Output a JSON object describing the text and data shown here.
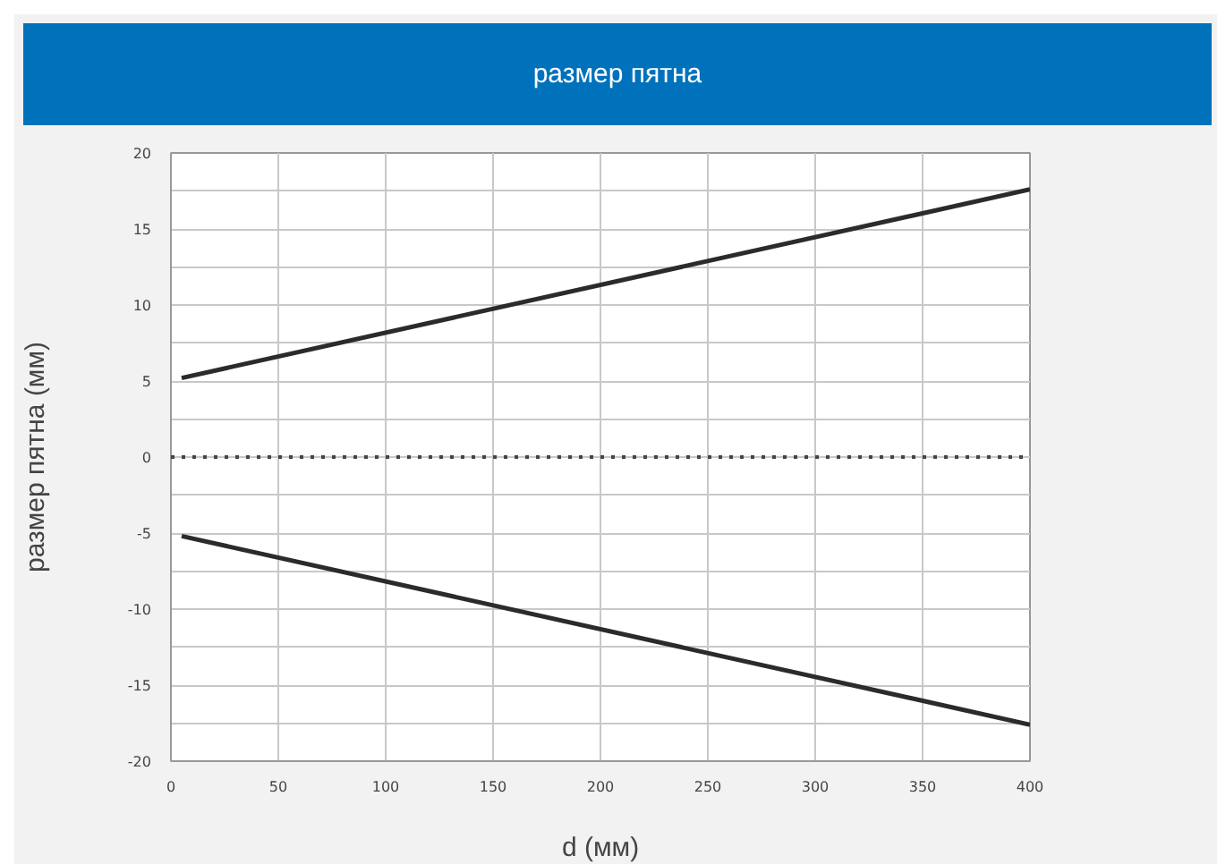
{
  "chart_data": {
    "type": "line",
    "title": "размер пятна",
    "xlabel": "d (мм)",
    "ylabel": "размер пятна (мм)",
    "x": [
      5,
      400
    ],
    "series": [
      {
        "color": "#2b2b2b",
        "values": [
          5.2,
          17.6
        ]
      },
      {
        "color": "#2b2b2b",
        "values": [
          -5.2,
          -17.6
        ]
      }
    ],
    "xlim": [
      0,
      400
    ],
    "xticks": [
      0,
      50,
      100,
      150,
      200,
      250,
      300,
      350,
      400
    ],
    "ylim": [
      -20,
      20
    ],
    "yticks": [
      -20,
      {
        "value": -17.5,
        "label": null
      },
      -15,
      {
        "value": -12.5,
        "label": null
      },
      -10,
      {
        "value": -7.5,
        "label": null
      },
      -5,
      {
        "value": -2.5,
        "label": null
      },
      0,
      {
        "value": 2.5,
        "label": null
      },
      5,
      {
        "value": 7.5,
        "label": null
      },
      10,
      {
        "value": 12.5,
        "label": null
      },
      15,
      {
        "value": 17.5,
        "label": null
      },
      20
    ],
    "ref_lines": [
      {
        "axis": "y",
        "value": 0,
        "color": "#444444",
        "line_style": "dotted"
      }
    ],
    "grid": true,
    "line_style": "solid",
    "marker": "none"
  }
}
